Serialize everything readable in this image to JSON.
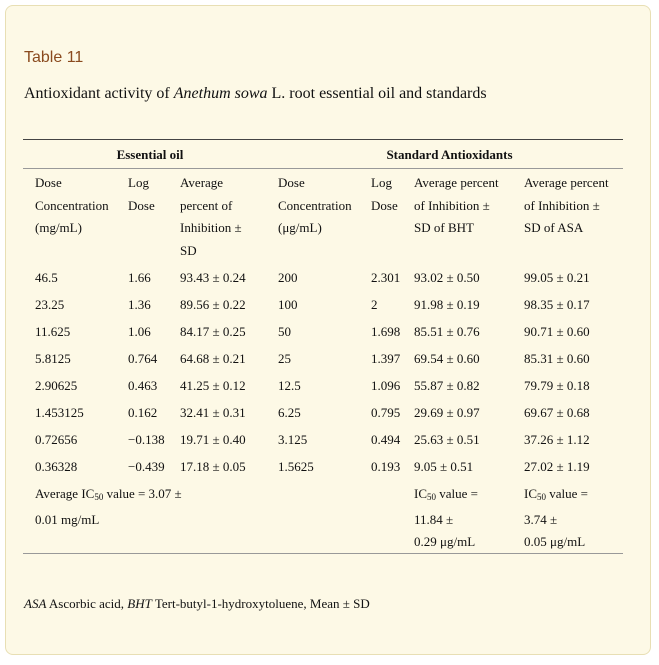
{
  "table_label": "Table 11",
  "caption": {
    "prefix": "Antioxidant activity of ",
    "species": "Anethum sowa",
    "suffix": " L. root essential oil and standards"
  },
  "groups": {
    "essential_oil": "Essential oil",
    "standard": "Standard Antioxidants"
  },
  "headers": {
    "eo_dose": [
      "Dose",
      "Concentration",
      "(mg/mL)"
    ],
    "eo_log": [
      "Log",
      "Dose"
    ],
    "eo_avg": [
      "Average",
      "percent of",
      "Inhibition ±",
      "SD"
    ],
    "std_dose": [
      "Dose",
      "Concentration",
      "(μg/mL)"
    ],
    "std_log": [
      "Log",
      "Dose"
    ],
    "bht": [
      "Average percent",
      "of Inhibition ±",
      "SD of BHT"
    ],
    "asa": [
      "Average percent",
      "of Inhibition ±",
      "SD of ASA"
    ]
  },
  "rows": [
    [
      "46.5",
      "1.66",
      "93.43 ± 0.24",
      "200",
      "2.301",
      "93.02 ± 0.50",
      "99.05 ± 0.21"
    ],
    [
      "23.25",
      "1.36",
      "89.56 ± 0.22",
      "100",
      "2",
      "91.98 ± 0.19",
      "98.35 ± 0.17"
    ],
    [
      "11.625",
      "1.06",
      "84.17 ± 0.25",
      "50",
      "1.698",
      "85.51 ± 0.76",
      "90.71 ± 0.60"
    ],
    [
      "5.8125",
      "0.764",
      "64.68 ± 0.21",
      "25",
      "1.397",
      "69.54 ± 0.60",
      "85.31 ± 0.60"
    ],
    [
      "2.90625",
      "0.463",
      "41.25 ± 0.12",
      "12.5",
      "1.096",
      "55.87 ± 0.82",
      "79.79 ± 0.18"
    ],
    [
      "1.453125",
      "0.162",
      "32.41 ± 0.31",
      "6.25",
      "0.795",
      "29.69 ± 0.97",
      "69.67 ± 0.68"
    ],
    [
      "0.72656",
      "−0.138",
      "19.71 ± 0.40",
      "3.125",
      "0.494",
      "25.63 ± 0.51",
      "37.26 ± 1.12"
    ],
    [
      "0.36328",
      "−0.439",
      "17.18 ± 0.05",
      "1.5625",
      "0.193",
      "9.05 ± 0.51",
      "27.02 ± 1.19"
    ]
  ],
  "summary": {
    "eo": {
      "pre": "Average IC",
      "sub": "50",
      "post": " value = 3.07 ±",
      "line2": "0.01 mg/mL"
    },
    "bht": {
      "pre": "IC",
      "sub": "50",
      "post": " value =",
      "line2": "11.84 ±",
      "line3": "0.29 μg/mL"
    },
    "asa": {
      "pre": "IC",
      "sub": "50",
      "post": " value =",
      "line2": "3.74 ±",
      "line3": "0.05 μg/mL"
    }
  },
  "footnote": {
    "asa_abbr": "ASA",
    "asa_text": " Ascorbic acid, ",
    "bht_abbr": "BHT",
    "bht_text": " Tert-butyl-1-hydroxytoluene, Mean ± SD"
  }
}
